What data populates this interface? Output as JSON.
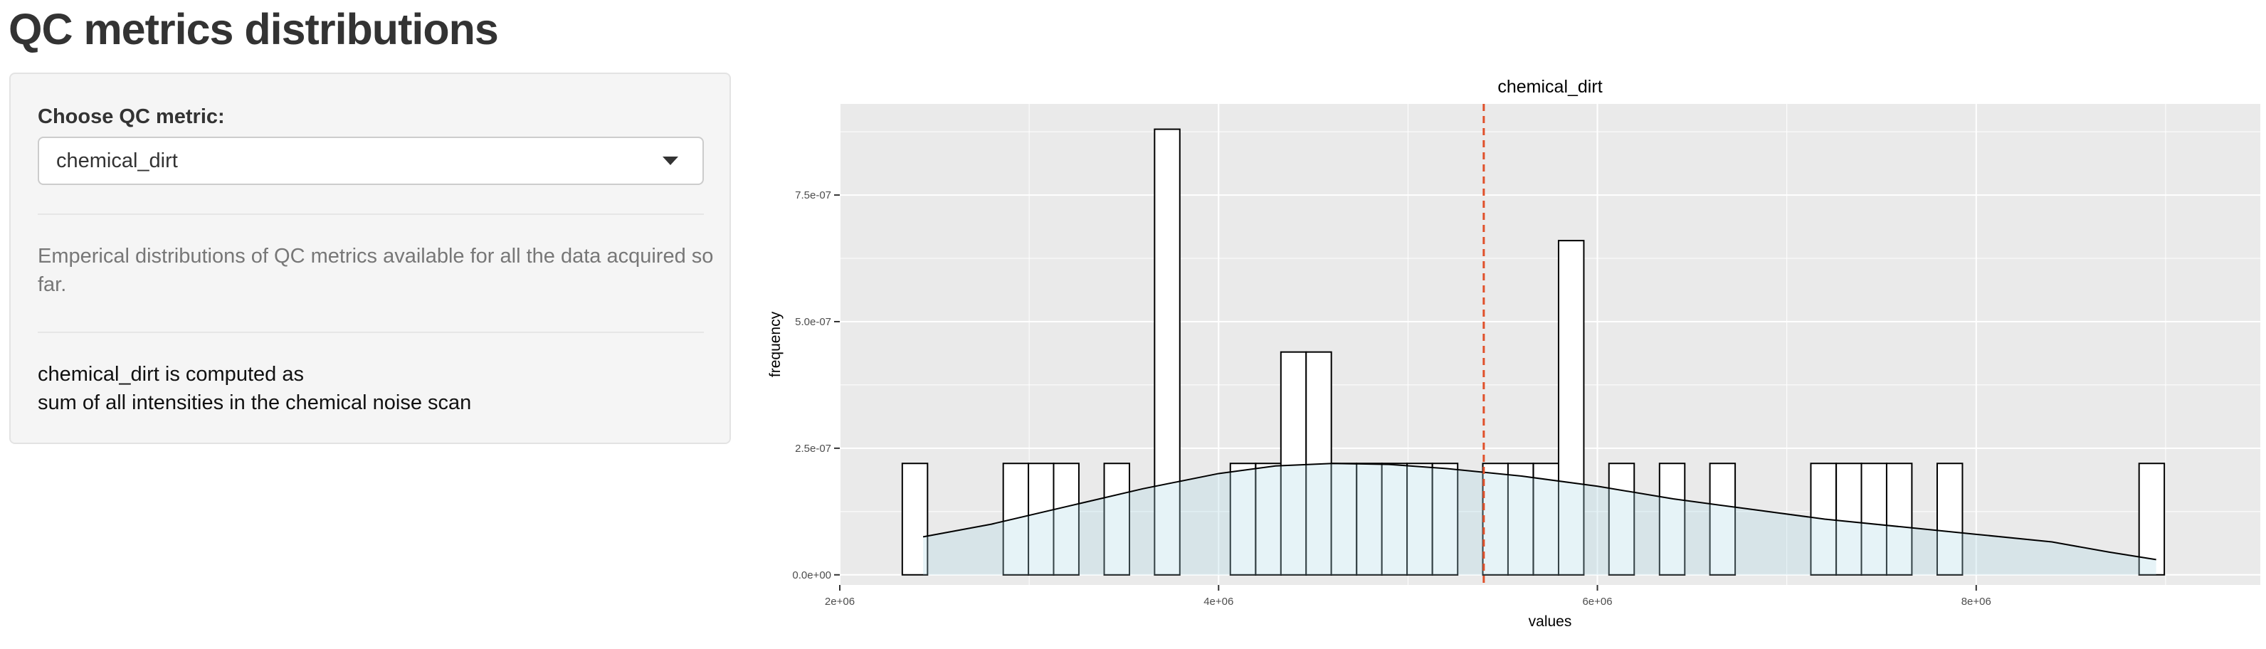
{
  "page": {
    "title": "QC metrics distributions"
  },
  "sidebar": {
    "select_label": "Choose QC metric:",
    "selected_metric": "chemical_dirt",
    "description": "Emperical distributions of QC metrics available for all the data acquired so far.",
    "computed_line1": "chemical_dirt is computed as",
    "computed_line2": "sum of all intensities in the chemical noise scan"
  },
  "colors": {
    "panel_bg": "#eaeaea",
    "grid": "#ffffff",
    "bar_fill": "#ffffff",
    "bar_stroke": "#000000",
    "density_fill": "#add8e6",
    "vline": "#e0502a"
  },
  "chart_data": {
    "type": "histogram",
    "title": "chemical_dirt",
    "xlabel": "values",
    "ylabel": "frequency",
    "xlim": [
      2000000,
      9500000
    ],
    "ylim": [
      -2e-08,
      9.3e-07
    ],
    "x_ticks": [
      2000000,
      4000000,
      6000000,
      8000000
    ],
    "x_tick_labels": [
      "2e+06",
      "4e+06",
      "6e+06",
      "8e+06"
    ],
    "y_ticks": [
      0,
      2.5e-07,
      5e-07,
      7.5e-07
    ],
    "y_tick_labels": [
      "0.0e+00",
      "2.5e-07",
      "5.0e-07",
      "7.5e-07"
    ],
    "grid": true,
    "bin_width": 133300,
    "bins": [
      {
        "start": 2330000,
        "value": 2.2e-07
      },
      {
        "start": 2863000,
        "value": 2.2e-07
      },
      {
        "start": 2996000,
        "value": 2.2e-07
      },
      {
        "start": 3129000,
        "value": 2.2e-07
      },
      {
        "start": 3396000,
        "value": 2.2e-07
      },
      {
        "start": 3662000,
        "value": 8.8e-07
      },
      {
        "start": 4062000,
        "value": 2.2e-07
      },
      {
        "start": 4196000,
        "value": 2.2e-07
      },
      {
        "start": 4329000,
        "value": 4.4e-07
      },
      {
        "start": 4462000,
        "value": 4.4e-07
      },
      {
        "start": 4595000,
        "value": 2.2e-07
      },
      {
        "start": 4729000,
        "value": 2.2e-07
      },
      {
        "start": 4862000,
        "value": 2.2e-07
      },
      {
        "start": 4995000,
        "value": 2.2e-07
      },
      {
        "start": 5129000,
        "value": 2.2e-07
      },
      {
        "start": 5395000,
        "value": 2.2e-07
      },
      {
        "start": 5528000,
        "value": 2.2e-07
      },
      {
        "start": 5662000,
        "value": 2.2e-07
      },
      {
        "start": 5795000,
        "value": 6.6e-07
      },
      {
        "start": 6061000,
        "value": 2.2e-07
      },
      {
        "start": 6328000,
        "value": 2.2e-07
      },
      {
        "start": 6594000,
        "value": 2.2e-07
      },
      {
        "start": 7127000,
        "value": 2.2e-07
      },
      {
        "start": 7261000,
        "value": 2.2e-07
      },
      {
        "start": 7394000,
        "value": 2.2e-07
      },
      {
        "start": 7527000,
        "value": 2.2e-07
      },
      {
        "start": 7794000,
        "value": 2.2e-07
      },
      {
        "start": 8860000,
        "value": 2.2e-07
      }
    ],
    "density": [
      {
        "x": 2440000,
        "y": 7.5e-08
      },
      {
        "x": 2800000,
        "y": 1e-07
      },
      {
        "x": 3200000,
        "y": 1.35e-07
      },
      {
        "x": 3600000,
        "y": 1.7e-07
      },
      {
        "x": 4000000,
        "y": 2e-07
      },
      {
        "x": 4300000,
        "y": 2.15e-07
      },
      {
        "x": 4600000,
        "y": 2.2e-07
      },
      {
        "x": 4900000,
        "y": 2.18e-07
      },
      {
        "x": 5200000,
        "y": 2.1e-07
      },
      {
        "x": 5600000,
        "y": 1.95e-07
      },
      {
        "x": 6000000,
        "y": 1.75e-07
      },
      {
        "x": 6400000,
        "y": 1.5e-07
      },
      {
        "x": 6800000,
        "y": 1.3e-07
      },
      {
        "x": 7200000,
        "y": 1.1e-07
      },
      {
        "x": 7600000,
        "y": 9.5e-08
      },
      {
        "x": 8000000,
        "y": 8e-08
      },
      {
        "x": 8400000,
        "y": 6.5e-08
      },
      {
        "x": 8700000,
        "y": 4.5e-08
      },
      {
        "x": 8950000,
        "y": 3e-08
      }
    ],
    "vline_x": 5400000
  }
}
